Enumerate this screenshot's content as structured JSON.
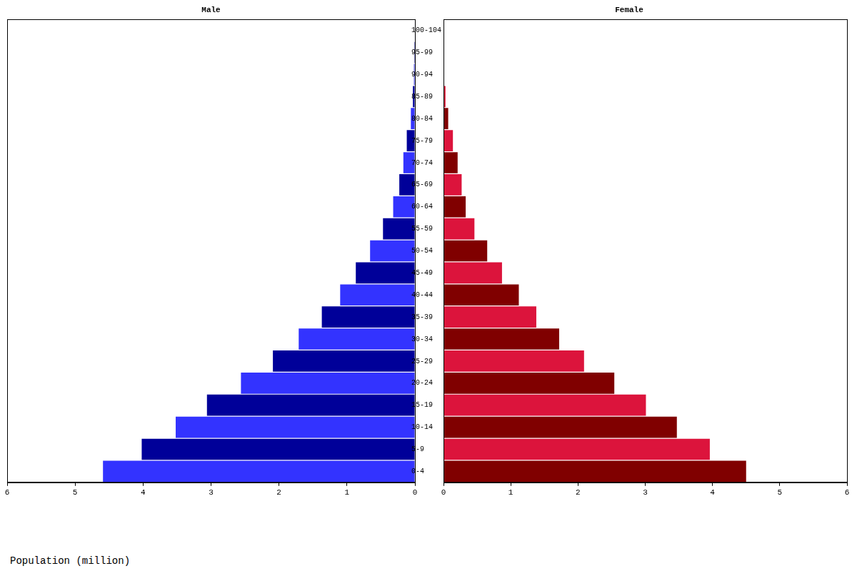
{
  "chart_data": {
    "type": "bar",
    "orientation": "horizontal",
    "x_label": "Population (million)",
    "categories": [
      "0-4",
      "5-9",
      "10-14",
      "15-19",
      "20-24",
      "25-29",
      "30-34",
      "35-39",
      "40-44",
      "45-49",
      "50-54",
      "55-59",
      "60-64",
      "65-69",
      "70-74",
      "75-79",
      "80-84",
      "85-89",
      "90-94",
      "95-99",
      "100-104"
    ],
    "series": [
      {
        "name": "Male",
        "values": [
          4.59,
          4.02,
          3.52,
          3.06,
          2.56,
          2.09,
          1.71,
          1.37,
          1.1,
          0.87,
          0.66,
          0.47,
          0.32,
          0.23,
          0.17,
          0.12,
          0.06,
          0.03,
          0.015,
          0.01,
          0.005
        ],
        "colors": [
          "#3333ff",
          "#000099",
          "#3333ff",
          "#000099",
          "#3333ff",
          "#000099",
          "#3333ff",
          "#000099",
          "#3333ff",
          "#000099",
          "#3333ff",
          "#000099",
          "#3333ff",
          "#000099",
          "#3333ff",
          "#000099",
          "#3333ff",
          "#000099",
          "#3333ff",
          "#000099",
          "#3333ff"
        ]
      },
      {
        "name": "Female",
        "values": [
          4.5,
          3.96,
          3.47,
          3.01,
          2.54,
          2.09,
          1.72,
          1.38,
          1.12,
          0.87,
          0.65,
          0.46,
          0.33,
          0.27,
          0.21,
          0.14,
          0.07,
          0.03,
          0.01,
          0.01,
          0.01
        ],
        "colors": [
          "#800000",
          "#dc143c",
          "#800000",
          "#dc143c",
          "#800000",
          "#dc143c",
          "#800000",
          "#dc143c",
          "#800000",
          "#dc143c",
          "#800000",
          "#dc143c",
          "#800000",
          "#dc143c",
          "#800000",
          "#dc143c",
          "#800000",
          "#dc143c",
          "#800000",
          "#dc143c",
          "#800000"
        ]
      }
    ],
    "xlim": [
      0,
      6
    ],
    "xticks": [
      0,
      1,
      2,
      3,
      4,
      5,
      6
    ],
    "grid": false
  }
}
